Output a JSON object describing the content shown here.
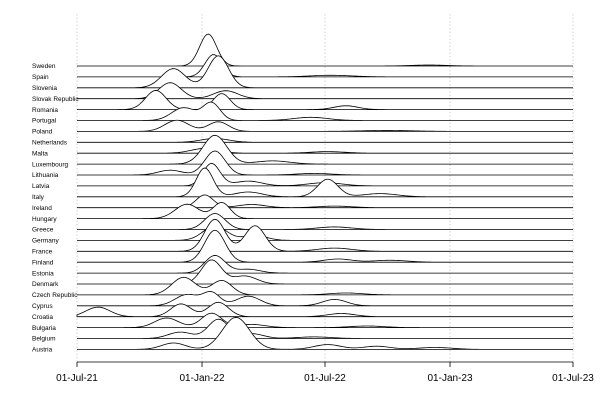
{
  "chart_data": {
    "type": "ridgeline",
    "title": "",
    "xlabel": "",
    "ylabel": "",
    "x_ticks": [
      "01-Jul-21",
      "01-Jan-22",
      "01-Jul-22",
      "01-Jan-23",
      "01-Jul-23"
    ],
    "x_tick_dates": [
      "2021-07-01",
      "2022-01-01",
      "2022-07-01",
      "2023-01-01",
      "2023-07-01"
    ],
    "xlim": [
      "2021-07-01",
      "2023-07-01"
    ],
    "grid": "vertical-dotted",
    "colors": {
      "line": "#000000",
      "fill": "#ffffff",
      "grid": "#c8c8c8"
    },
    "series": [
      {
        "name": "Sweden",
        "peaks": [
          [
            "2022-01-10",
            1.0,
            10
          ],
          [
            "2022-12-01",
            0.03,
            20
          ]
        ]
      },
      {
        "name": "Spain",
        "peaks": [
          [
            "2022-01-18",
            0.7,
            10
          ],
          [
            "2022-07-10",
            0.05,
            25
          ]
        ]
      },
      {
        "name": "Slovenia",
        "peaks": [
          [
            "2021-11-20",
            0.6,
            14
          ],
          [
            "2022-01-25",
            1.0,
            12
          ]
        ]
      },
      {
        "name": "Slovak Republic",
        "peaks": [
          [
            "2021-11-15",
            0.5,
            13
          ],
          [
            "2022-02-05",
            0.25,
            14
          ]
        ]
      },
      {
        "name": "Romania",
        "peaks": [
          [
            "2021-10-25",
            0.6,
            12
          ],
          [
            "2022-01-30",
            0.5,
            10
          ],
          [
            "2022-08-01",
            0.12,
            14
          ]
        ]
      },
      {
        "name": "Portugal",
        "peaks": [
          [
            "2021-12-05",
            0.4,
            14
          ],
          [
            "2022-01-15",
            0.55,
            10
          ],
          [
            "2022-06-10",
            0.1,
            20
          ]
        ]
      },
      {
        "name": "Poland",
        "peaks": [
          [
            "2021-11-25",
            0.35,
            14
          ],
          [
            "2022-01-25",
            0.3,
            12
          ],
          [
            "2022-10-01",
            0.03,
            30
          ]
        ]
      },
      {
        "name": "Netherlands",
        "peaks": [
          [
            "2022-01-20",
            0.12,
            16
          ]
        ]
      },
      {
        "name": "Malta",
        "peaks": [
          [
            "2022-01-05",
            0.15,
            16
          ],
          [
            "2022-07-05",
            0.05,
            20
          ]
        ]
      },
      {
        "name": "Luxembourg",
        "peaks": [
          [
            "2022-01-20",
            0.9,
            14
          ],
          [
            "2022-04-15",
            0.1,
            20
          ]
        ]
      },
      {
        "name": "Lithuania",
        "peaks": [
          [
            "2021-11-15",
            0.15,
            14
          ],
          [
            "2022-01-20",
            0.75,
            12
          ],
          [
            "2022-06-15",
            0.05,
            20
          ]
        ]
      },
      {
        "name": "Latvia",
        "peaks": [
          [
            "2022-01-15",
            0.7,
            10
          ],
          [
            "2022-03-10",
            0.15,
            16
          ],
          [
            "2022-07-01",
            0.1,
            20
          ]
        ]
      },
      {
        "name": "Italy",
        "peaks": [
          [
            "2022-01-05",
            0.9,
            10
          ],
          [
            "2022-03-10",
            0.15,
            16
          ],
          [
            "2022-07-05",
            0.55,
            12
          ],
          [
            "2022-09-20",
            0.1,
            20
          ]
        ]
      },
      {
        "name": "Ireland",
        "peaks": [
          [
            "2022-01-05",
            0.4,
            10
          ],
          [
            "2022-03-15",
            0.1,
            16
          ],
          [
            "2022-07-15",
            0.05,
            20
          ]
        ]
      },
      {
        "name": "Hungary",
        "peaks": [
          [
            "2021-12-10",
            0.45,
            14
          ],
          [
            "2022-01-30",
            0.5,
            10
          ]
        ]
      },
      {
        "name": "Greece",
        "peaks": [
          [
            "2022-01-20",
            0.5,
            12
          ],
          [
            "2022-07-15",
            0.08,
            20
          ]
        ]
      },
      {
        "name": "Germany",
        "peaks": [
          [
            "2022-01-20",
            0.45,
            14
          ],
          [
            "2022-03-20",
            0.15,
            14
          ]
        ]
      },
      {
        "name": "France",
        "peaks": [
          [
            "2022-01-20",
            1.0,
            12
          ],
          [
            "2022-03-20",
            0.8,
            12
          ],
          [
            "2022-07-15",
            0.1,
            20
          ]
        ]
      },
      {
        "name": "Finland",
        "peaks": [
          [
            "2022-01-20",
            1.0,
            12
          ],
          [
            "2022-07-20",
            0.1,
            16
          ],
          [
            "2022-10-05",
            0.06,
            20
          ]
        ]
      },
      {
        "name": "Estonia",
        "peaks": [
          [
            "2022-01-20",
            0.55,
            12
          ],
          [
            "2022-03-10",
            0.12,
            14
          ]
        ]
      },
      {
        "name": "Denmark",
        "peaks": [
          [
            "2022-01-15",
            0.75,
            12
          ],
          [
            "2022-03-05",
            0.25,
            14
          ]
        ]
      },
      {
        "name": "Czech Republic",
        "peaks": [
          [
            "2021-12-05",
            0.55,
            14
          ],
          [
            "2022-01-30",
            0.45,
            12
          ],
          [
            "2022-08-01",
            0.06,
            20
          ]
        ]
      },
      {
        "name": "Cyprus",
        "peaks": [
          [
            "2021-12-10",
            0.35,
            14
          ],
          [
            "2022-01-15",
            0.4,
            10
          ],
          [
            "2022-03-10",
            0.3,
            14
          ],
          [
            "2022-07-15",
            0.2,
            14
          ]
        ]
      },
      {
        "name": "Croatia",
        "peaks": [
          [
            "2021-08-01",
            0.3,
            14
          ],
          [
            "2021-12-01",
            0.4,
            12
          ],
          [
            "2022-01-25",
            0.45,
            12
          ],
          [
            "2022-07-25",
            0.1,
            16
          ]
        ]
      },
      {
        "name": "Bulgaria",
        "peaks": [
          [
            "2021-11-10",
            0.3,
            14
          ],
          [
            "2022-01-15",
            0.45,
            12
          ],
          [
            "2022-03-15",
            0.1,
            16
          ],
          [
            "2022-09-01",
            0.05,
            20
          ]
        ]
      },
      {
        "name": "Belgium",
        "peaks": [
          [
            "2021-11-30",
            0.2,
            14
          ],
          [
            "2022-01-25",
            0.6,
            12
          ],
          [
            "2022-03-15",
            0.15,
            14
          ],
          [
            "2022-06-15",
            0.05,
            20
          ]
        ]
      },
      {
        "name": "Austria",
        "peaks": [
          [
            "2021-11-20",
            0.2,
            14
          ],
          [
            "2022-02-20",
            1.0,
            16
          ],
          [
            "2022-07-05",
            0.15,
            16
          ],
          [
            "2022-09-15",
            0.1,
            16
          ],
          [
            "2022-12-10",
            0.06,
            20
          ]
        ]
      }
    ]
  }
}
